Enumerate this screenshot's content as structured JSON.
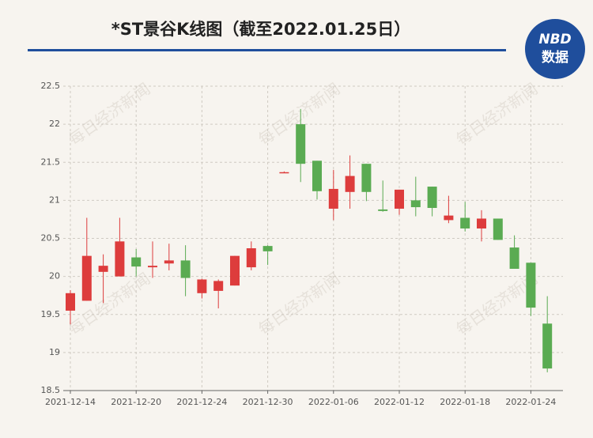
{
  "chart_data": {
    "type": "candlestick",
    "title": "*ST景谷K线图（截至2022.01.25日）",
    "categories": [
      "2021-12-14",
      null,
      null,
      null,
      "2021-12-20",
      null,
      null,
      null,
      "2021-12-24",
      null,
      null,
      null,
      "2021-12-30",
      null,
      null,
      null,
      "2022-01-06",
      null,
      null,
      null,
      "2022-01-12",
      null,
      null,
      null,
      "2022-01-18",
      null,
      null,
      null,
      "2022-01-24",
      null
    ],
    "open": [
      19.55,
      19.68,
      20.06,
      20.0,
      20.25,
      20.12,
      20.17,
      20.21,
      19.78,
      19.81,
      19.88,
      20.12,
      20.4,
      21.36,
      22.0,
      21.52,
      20.89,
      21.11,
      21.48,
      20.88,
      20.89,
      21.0,
      21.18,
      20.74,
      20.77,
      20.63,
      20.76,
      20.38,
      20.18,
      19.38
    ],
    "high": [
      19.82,
      20.77,
      20.29,
      20.77,
      20.36,
      20.46,
      20.43,
      20.41,
      19.97,
      19.96,
      20.27,
      20.46,
      20.41,
      21.38,
      22.2,
      21.52,
      21.4,
      21.59,
      21.48,
      21.26,
      21.14,
      21.31,
      21.18,
      21.06,
      20.98,
      20.87,
      20.76,
      20.54,
      20.18,
      19.74
    ],
    "low": [
      19.37,
      19.68,
      19.65,
      20.0,
      20.0,
      19.98,
      20.08,
      19.74,
      19.71,
      19.58,
      19.88,
      20.08,
      20.15,
      21.36,
      21.24,
      21.01,
      20.74,
      20.89,
      20.99,
      20.85,
      20.81,
      20.79,
      20.79,
      20.7,
      20.59,
      20.46,
      20.48,
      20.1,
      19.48,
      18.74
    ],
    "close": [
      19.78,
      20.27,
      20.14,
      20.46,
      20.13,
      20.14,
      20.21,
      19.98,
      19.96,
      19.94,
      20.27,
      20.37,
      20.33,
      21.37,
      21.48,
      21.12,
      21.15,
      21.32,
      21.11,
      20.86,
      21.14,
      20.91,
      20.9,
      20.8,
      20.63,
      20.76,
      20.48,
      20.1,
      19.59,
      18.79
    ],
    "up_color": "#dd3c3c",
    "down_color": "#5aab52",
    "ylim": [
      18.5,
      22.5
    ],
    "yticks": [
      18.5,
      19,
      19.5,
      20,
      20.5,
      21,
      21.5,
      22,
      22.5
    ],
    "grid": true
  },
  "logo": {
    "line1": "NBD",
    "line2": "数据"
  },
  "watermark": "每日经济新闻"
}
